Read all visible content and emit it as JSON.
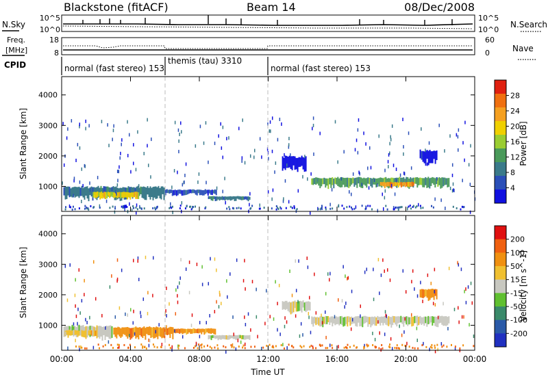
{
  "header": {
    "station": "Blackstone (fitACF)",
    "beam": "Beam 14",
    "date": "08/Dec/2008"
  },
  "noise_panel": {
    "left_label": "N.Sky",
    "left_ticks": [
      "10^5",
      "10^0"
    ],
    "right_label": "N.Search",
    "right_ticks": [
      "10^5",
      "10^0"
    ]
  },
  "freq_panel": {
    "left_label_1": "Freq.",
    "left_label_2": "[MHz]",
    "left_ticks": [
      "18",
      "8"
    ],
    "right_label": "Nave",
    "right_ticks": [
      "60",
      "0"
    ]
  },
  "cpid": {
    "label": "CPID",
    "segments": [
      {
        "start_hour": 0,
        "end_hour": 6,
        "text": "normal (fast stereo) 153"
      },
      {
        "start_hour": 6,
        "end_hour": 12,
        "text": "themis (tau) 3310"
      },
      {
        "start_hour": 12,
        "end_hour": 24,
        "text": "normal (fast stereo) 153"
      }
    ]
  },
  "colors": {
    "power_scale": [
      "#1010e0",
      "#2a4fb8",
      "#3a7a8a",
      "#4a9a5a",
      "#9acd32",
      "#f0d000",
      "#f5a020",
      "#f07010",
      "#e02010"
    ],
    "velocity_scale": [
      "#2030c0",
      "#2a5aa8",
      "#3a8a6a",
      "#60c030",
      "#c8c8c0",
      "#f0c030",
      "#f09010",
      "#f06010",
      "#e01010"
    ]
  },
  "chart_data": [
    {
      "type": "heatmap",
      "panel": "power",
      "xlabel": "Time UT",
      "ylabel": "Slant Range [km]",
      "xlim": [
        0,
        24
      ],
      "ylim": [
        180,
        4600
      ],
      "x_tick_labels": [
        "00:00",
        "04:00",
        "08:00",
        "12:00",
        "16:00",
        "20:00",
        "00:00"
      ],
      "y_tick_labels": [
        "1000",
        "2000",
        "3000",
        "4000"
      ],
      "colorbar_label": "Power [dB]",
      "colorbar_ticks": [
        "28",
        "24",
        "20",
        "16",
        "12",
        "8",
        "4"
      ],
      "colorbar_range": [
        0,
        30
      ],
      "bands": [
        {
          "start_hour": 0.1,
          "end_hour": 6.0,
          "range_low": 550,
          "range_high": 1000,
          "level": 2
        },
        {
          "start_hour": 1.8,
          "end_hour": 4.5,
          "range_low": 580,
          "range_high": 820,
          "level": 5
        },
        {
          "start_hour": 6.0,
          "end_hour": 9.0,
          "range_low": 700,
          "range_high": 900,
          "level": 1
        },
        {
          "start_hour": 8.5,
          "end_hour": 11.0,
          "range_low": 520,
          "range_high": 680,
          "level": 2
        },
        {
          "start_hour": 12.8,
          "end_hour": 14.2,
          "range_low": 1500,
          "range_high": 2000,
          "level": 0
        },
        {
          "start_hour": 14.5,
          "end_hour": 22.5,
          "range_low": 950,
          "range_high": 1300,
          "level": 3
        },
        {
          "start_hour": 18.5,
          "end_hour": 20.5,
          "range_low": 950,
          "range_high": 1150,
          "level": 6
        },
        {
          "start_hour": 20.8,
          "end_hour": 21.8,
          "range_low": 1700,
          "range_high": 2200,
          "level": 0
        }
      ]
    },
    {
      "type": "heatmap",
      "panel": "velocity",
      "xlabel": "Time UT",
      "ylabel": "Slant Range [km]",
      "xlim": [
        0,
        24
      ],
      "ylim": [
        180,
        4600
      ],
      "x_tick_labels": [
        "00:00",
        "04:00",
        "08:00",
        "12:00",
        "16:00",
        "20:00",
        "00:00"
      ],
      "y_tick_labels": [
        "1000",
        "2000",
        "3000",
        "4000"
      ],
      "colorbar_label": "Velocity [m s^-1]",
      "colorbar_ticks": [
        "200",
        "100",
        "50",
        "15",
        "-15",
        "-50",
        "-100",
        "-200"
      ],
      "colorbar_range": [
        -250,
        250
      ],
      "bands": [
        {
          "start_hour": 0.1,
          "end_hour": 3.0,
          "range_low": 550,
          "range_high": 1000,
          "level": 4
        },
        {
          "start_hour": 0.1,
          "end_hour": 2.0,
          "range_low": 600,
          "range_high": 850,
          "level": 5
        },
        {
          "start_hour": 3.0,
          "end_hour": 6.5,
          "range_low": 550,
          "range_high": 950,
          "level": 6
        },
        {
          "start_hour": 6.5,
          "end_hour": 9.0,
          "range_low": 700,
          "range_high": 900,
          "level": 6
        },
        {
          "start_hour": 8.5,
          "end_hour": 11.0,
          "range_low": 520,
          "range_high": 680,
          "level": 4
        },
        {
          "start_hour": 12.8,
          "end_hour": 14.5,
          "range_low": 1400,
          "range_high": 1800,
          "level": 4
        },
        {
          "start_hour": 14.5,
          "end_hour": 22.5,
          "range_low": 950,
          "range_high": 1300,
          "level": 4
        },
        {
          "start_hour": 20.8,
          "end_hour": 21.8,
          "range_low": 1800,
          "range_high": 2200,
          "level": 6
        }
      ]
    }
  ]
}
